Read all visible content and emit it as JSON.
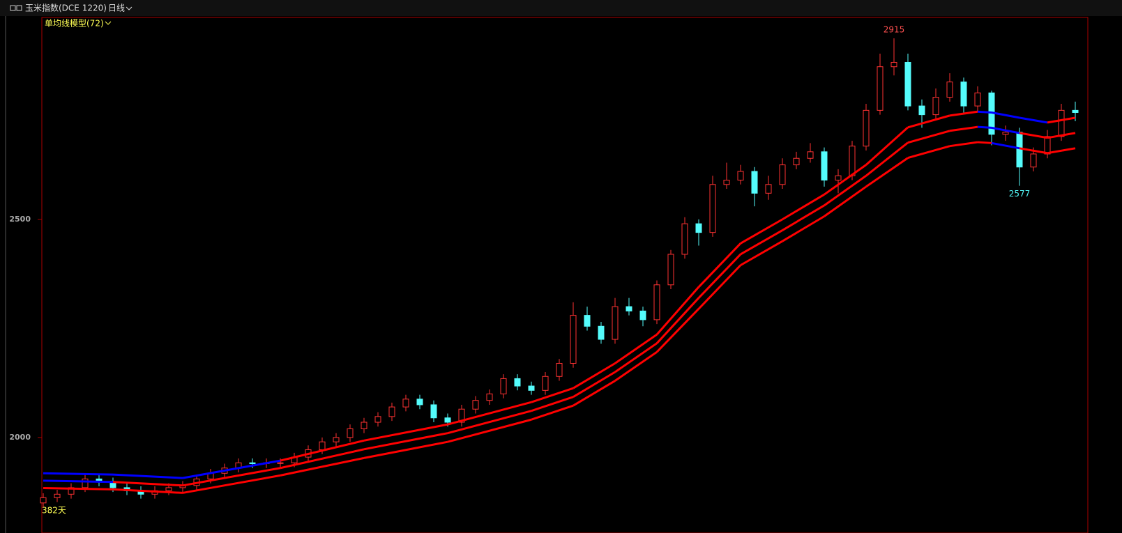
{
  "header": {
    "symbol": "玉米指数(DCE 1220)",
    "period": "日线",
    "indicator": "单均线模型(72)",
    "days": "382天"
  },
  "chart_data": {
    "type": "candlestick",
    "open": [
      1850,
      1862,
      1870,
      1885,
      1905,
      1898,
      1885,
      1878,
      1870,
      1878,
      1885,
      1890,
      1905,
      1918,
      1930,
      1942,
      1940,
      1942,
      1942,
      1955,
      1972,
      1990,
      2000,
      2020,
      2035,
      2048,
      2070,
      2088,
      2075,
      2045,
      2035,
      2065,
      2085,
      2100,
      2135,
      2118,
      2108,
      2140,
      2170,
      2280,
      2255,
      2225,
      2300,
      2290,
      2270,
      2350,
      2420,
      2490,
      2470,
      2580,
      2590,
      2610,
      2560,
      2580,
      2625,
      2640,
      2655,
      2590,
      2600,
      2668,
      2750,
      2850,
      2860,
      2760,
      2740,
      2780,
      2815,
      2760,
      2790,
      2695,
      2700,
      2620,
      2650,
      2690,
      2750
    ],
    "high": [
      1872,
      1880,
      1895,
      1915,
      1915,
      1908,
      1895,
      1888,
      1888,
      1895,
      1900,
      1915,
      1928,
      1940,
      1952,
      1952,
      1952,
      1952,
      1965,
      1982,
      2000,
      2010,
      2030,
      2045,
      2058,
      2080,
      2098,
      2098,
      2085,
      2055,
      2075,
      2095,
      2110,
      2145,
      2145,
      2128,
      2150,
      2180,
      2310,
      2300,
      2265,
      2320,
      2320,
      2300,
      2360,
      2430,
      2505,
      2500,
      2600,
      2630,
      2625,
      2620,
      2600,
      2640,
      2655,
      2675,
      2665,
      2615,
      2680,
      2765,
      2880,
      2915,
      2880,
      2775,
      2800,
      2835,
      2825,
      2805,
      2795,
      2715,
      2710,
      2665,
      2705,
      2765,
      2770
    ],
    "low": [
      1840,
      1852,
      1860,
      1875,
      1888,
      1875,
      1868,
      1860,
      1860,
      1868,
      1875,
      1880,
      1895,
      1908,
      1920,
      1930,
      1930,
      1932,
      1932,
      1945,
      1962,
      1980,
      1990,
      2010,
      2025,
      2038,
      2060,
      2065,
      2035,
      2025,
      2025,
      2055,
      2075,
      2090,
      2108,
      2098,
      2098,
      2130,
      2160,
      2245,
      2215,
      2215,
      2280,
      2255,
      2260,
      2340,
      2410,
      2440,
      2460,
      2570,
      2580,
      2530,
      2545,
      2570,
      2615,
      2630,
      2575,
      2560,
      2590,
      2658,
      2740,
      2830,
      2750,
      2710,
      2730,
      2770,
      2745,
      2745,
      2670,
      2680,
      2577,
      2610,
      2640,
      2680,
      2725
    ],
    "close": [
      1862,
      1870,
      1885,
      1905,
      1898,
      1885,
      1878,
      1870,
      1878,
      1885,
      1890,
      1905,
      1918,
      1930,
      1942,
      1940,
      1942,
      1942,
      1955,
      1972,
      1990,
      2000,
      2020,
      2035,
      2048,
      2070,
      2088,
      2075,
      2045,
      2035,
      2065,
      2085,
      2100,
      2135,
      2118,
      2108,
      2140,
      2170,
      2280,
      2255,
      2225,
      2300,
      2290,
      2270,
      2350,
      2420,
      2490,
      2470,
      2580,
      2590,
      2610,
      2560,
      2580,
      2625,
      2640,
      2655,
      2590,
      2600,
      2668,
      2750,
      2850,
      2860,
      2760,
      2740,
      2780,
      2815,
      2760,
      2790,
      2695,
      2700,
      2620,
      2650,
      2690,
      2750,
      2745
    ],
    "up_color": "#ff3232",
    "down_color": "#54fcfc",
    "band_x": [
      0,
      5,
      10,
      17,
      23,
      29,
      35,
      38,
      41,
      44,
      47,
      50,
      53,
      56,
      59,
      62,
      65,
      67,
      68,
      70,
      72,
      74
    ],
    "bands": [
      {
        "values": [
          1918,
          1915,
          1907,
          1947,
          1993,
          2030,
          2081,
          2113,
          2170,
          2236,
          2345,
          2445,
          2500,
          2557,
          2625,
          2711,
          2738,
          2747,
          2745,
          2733,
          2722,
          2733
        ]
      },
      {
        "values": [
          1901,
          1898,
          1890,
          1930,
          1973,
          2010,
          2061,
          2093,
          2150,
          2216,
          2320,
          2420,
          2475,
          2532,
          2600,
          2676,
          2703,
          2712,
          2710,
          2698,
          2687,
          2698
        ]
      },
      {
        "values": [
          1884,
          1881,
          1873,
          1913,
          1953,
          1990,
          2041,
          2073,
          2130,
          2196,
          2295,
          2395,
          2450,
          2507,
          2575,
          2641,
          2668,
          2677,
          2675,
          2663,
          2652,
          2663
        ]
      }
    ],
    "band_above_color": "#ff0000",
    "band_below_color": "#0000ff",
    "high_label": 2915,
    "low_label": 2577,
    "ylim": [
      1813,
      2963
    ],
    "yticks": [
      2000,
      2500
    ]
  }
}
